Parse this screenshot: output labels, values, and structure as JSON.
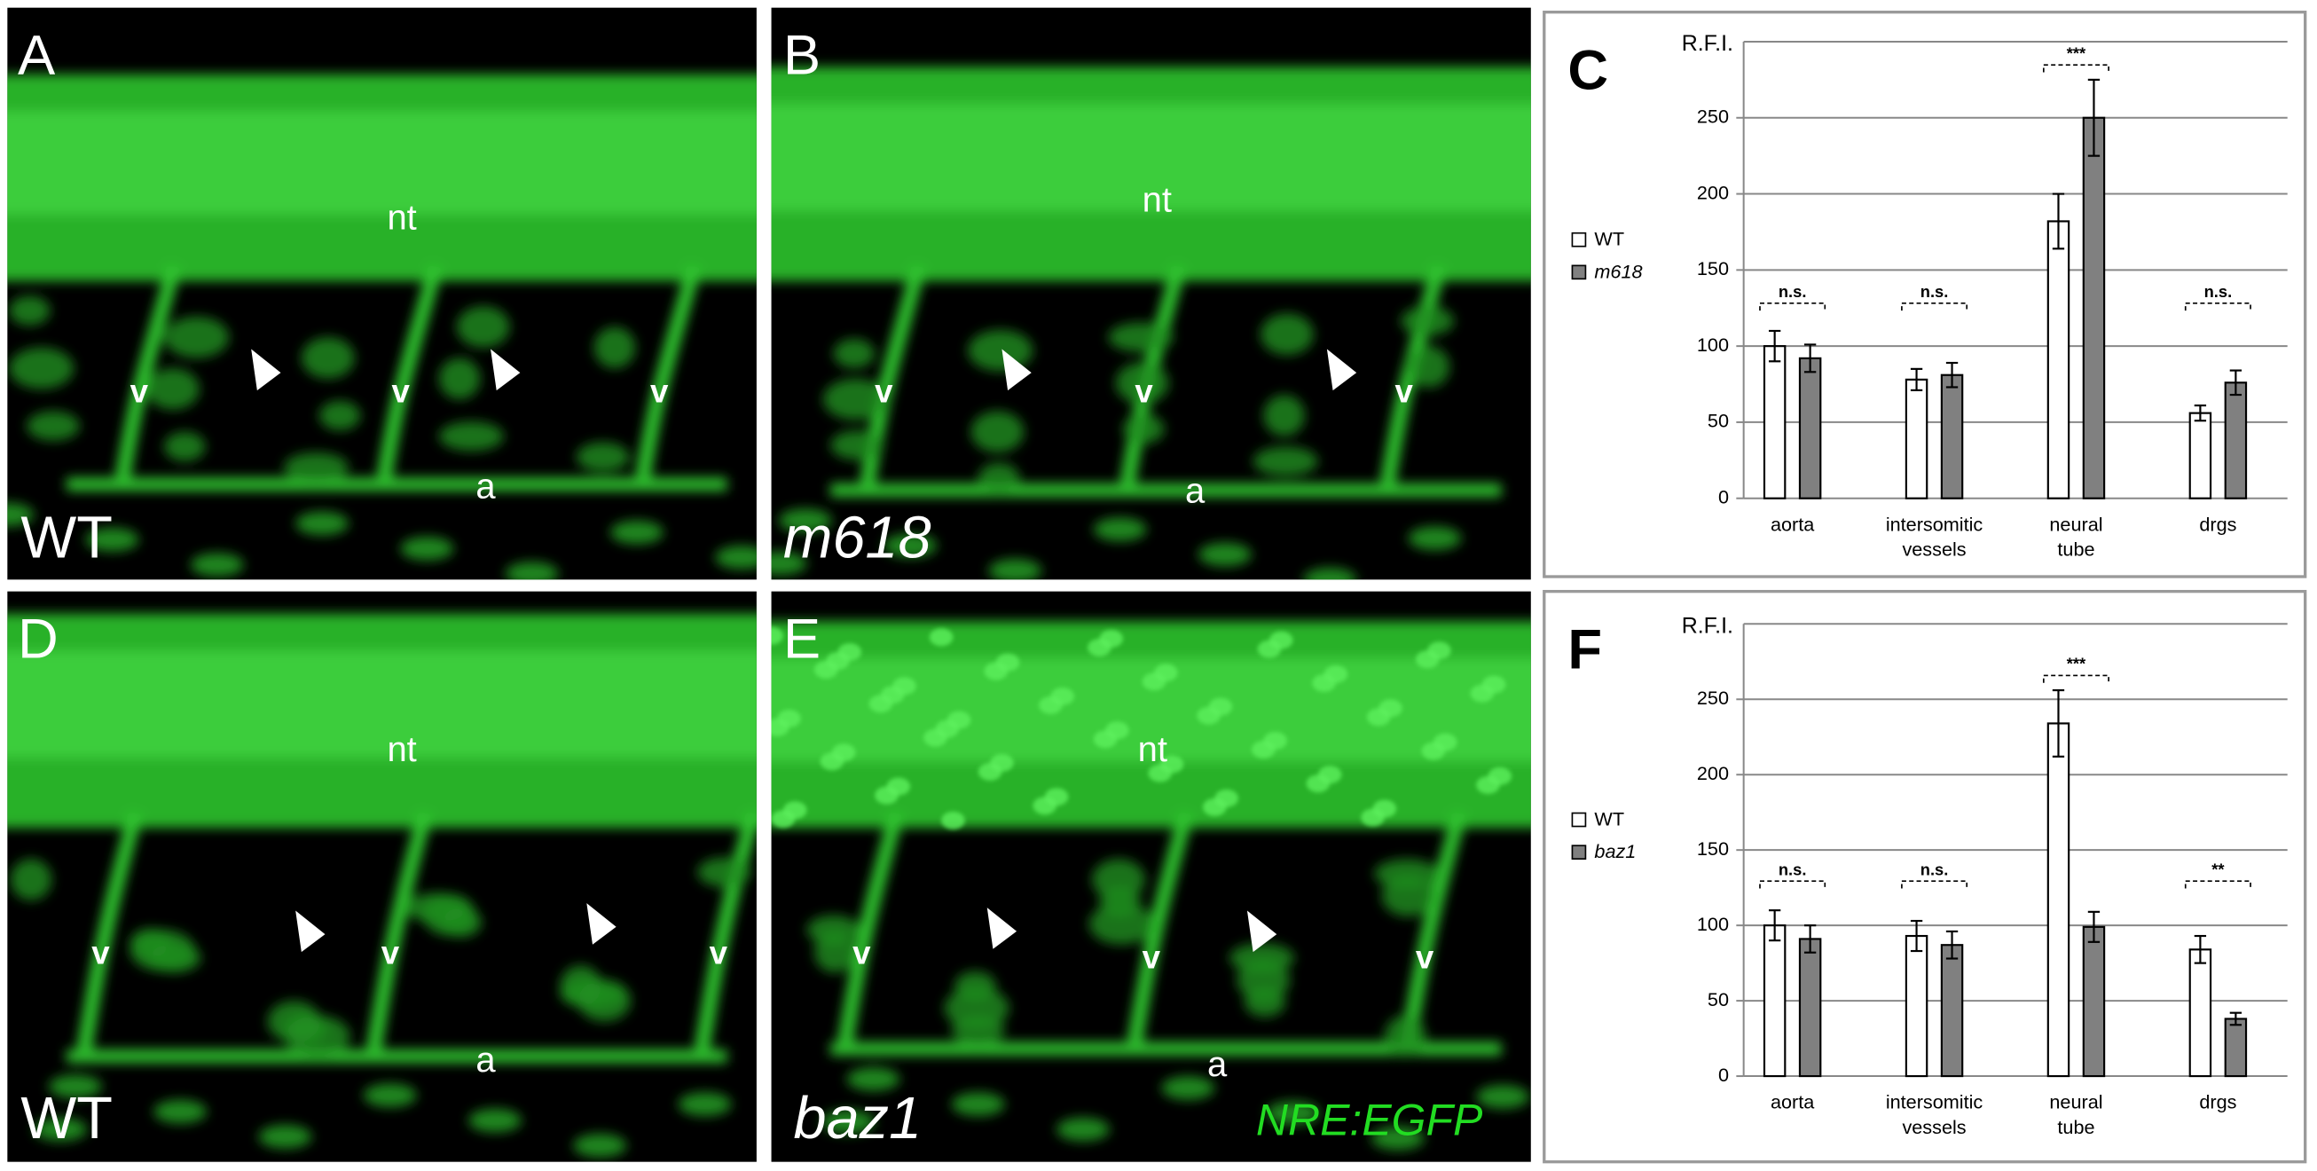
{
  "panels": [
    {
      "letter": "A",
      "tissue_labels": [
        "nt",
        "v",
        "v",
        "v",
        "a"
      ],
      "genotype": "WT"
    },
    {
      "letter": "B",
      "tissue_labels": [
        "nt",
        "v",
        "v",
        "v",
        "a"
      ],
      "genotype": "m618"
    },
    {
      "letter": "D",
      "tissue_labels": [
        "nt",
        "v",
        "v",
        "v",
        "a"
      ],
      "genotype": "WT"
    },
    {
      "letter": "E",
      "tissue_labels": [
        "nt",
        "v",
        "v",
        "v",
        "a"
      ],
      "genotype": "baz1",
      "reporter": "NRE:EGFP"
    }
  ],
  "chart_data": [
    {
      "type": "bar",
      "panel_label": "C",
      "ylabel": "R.F.I.",
      "categories": [
        "aorta",
        "intersomitic vessels",
        "neural tube",
        "drgs"
      ],
      "series": [
        {
          "name": "WT",
          "color": "#ffffff",
          "values": [
            100,
            78,
            182,
            56
          ],
          "errors": [
            10,
            7,
            18,
            5
          ]
        },
        {
          "name": "m618",
          "color": "#808080",
          "values": [
            92,
            81,
            250,
            76
          ],
          "errors": [
            9,
            8,
            25,
            8
          ]
        }
      ],
      "significance": [
        "n.s.",
        "n.s.",
        "***",
        "n.s."
      ],
      "ylim": [
        0,
        300
      ],
      "yticks": [
        0,
        50,
        100,
        150,
        200,
        250
      ],
      "grid": true,
      "legend": "left"
    },
    {
      "type": "bar",
      "panel_label": "F",
      "ylabel": "R.F.I.",
      "categories": [
        "aorta",
        "intersomitic vessels",
        "neural tube",
        "drgs"
      ],
      "series": [
        {
          "name": "WT",
          "color": "#ffffff",
          "values": [
            100,
            93,
            234,
            84
          ],
          "errors": [
            10,
            10,
            22,
            9
          ]
        },
        {
          "name": "baz1",
          "color": "#808080",
          "values": [
            91,
            87,
            99,
            38
          ],
          "errors": [
            9,
            9,
            10,
            4
          ]
        }
      ],
      "significance": [
        "n.s.",
        "n.s.",
        "***",
        "**"
      ],
      "ylim": [
        0,
        300
      ],
      "yticks": [
        0,
        50,
        100,
        150,
        200,
        250
      ],
      "grid": true,
      "legend": "left"
    }
  ]
}
